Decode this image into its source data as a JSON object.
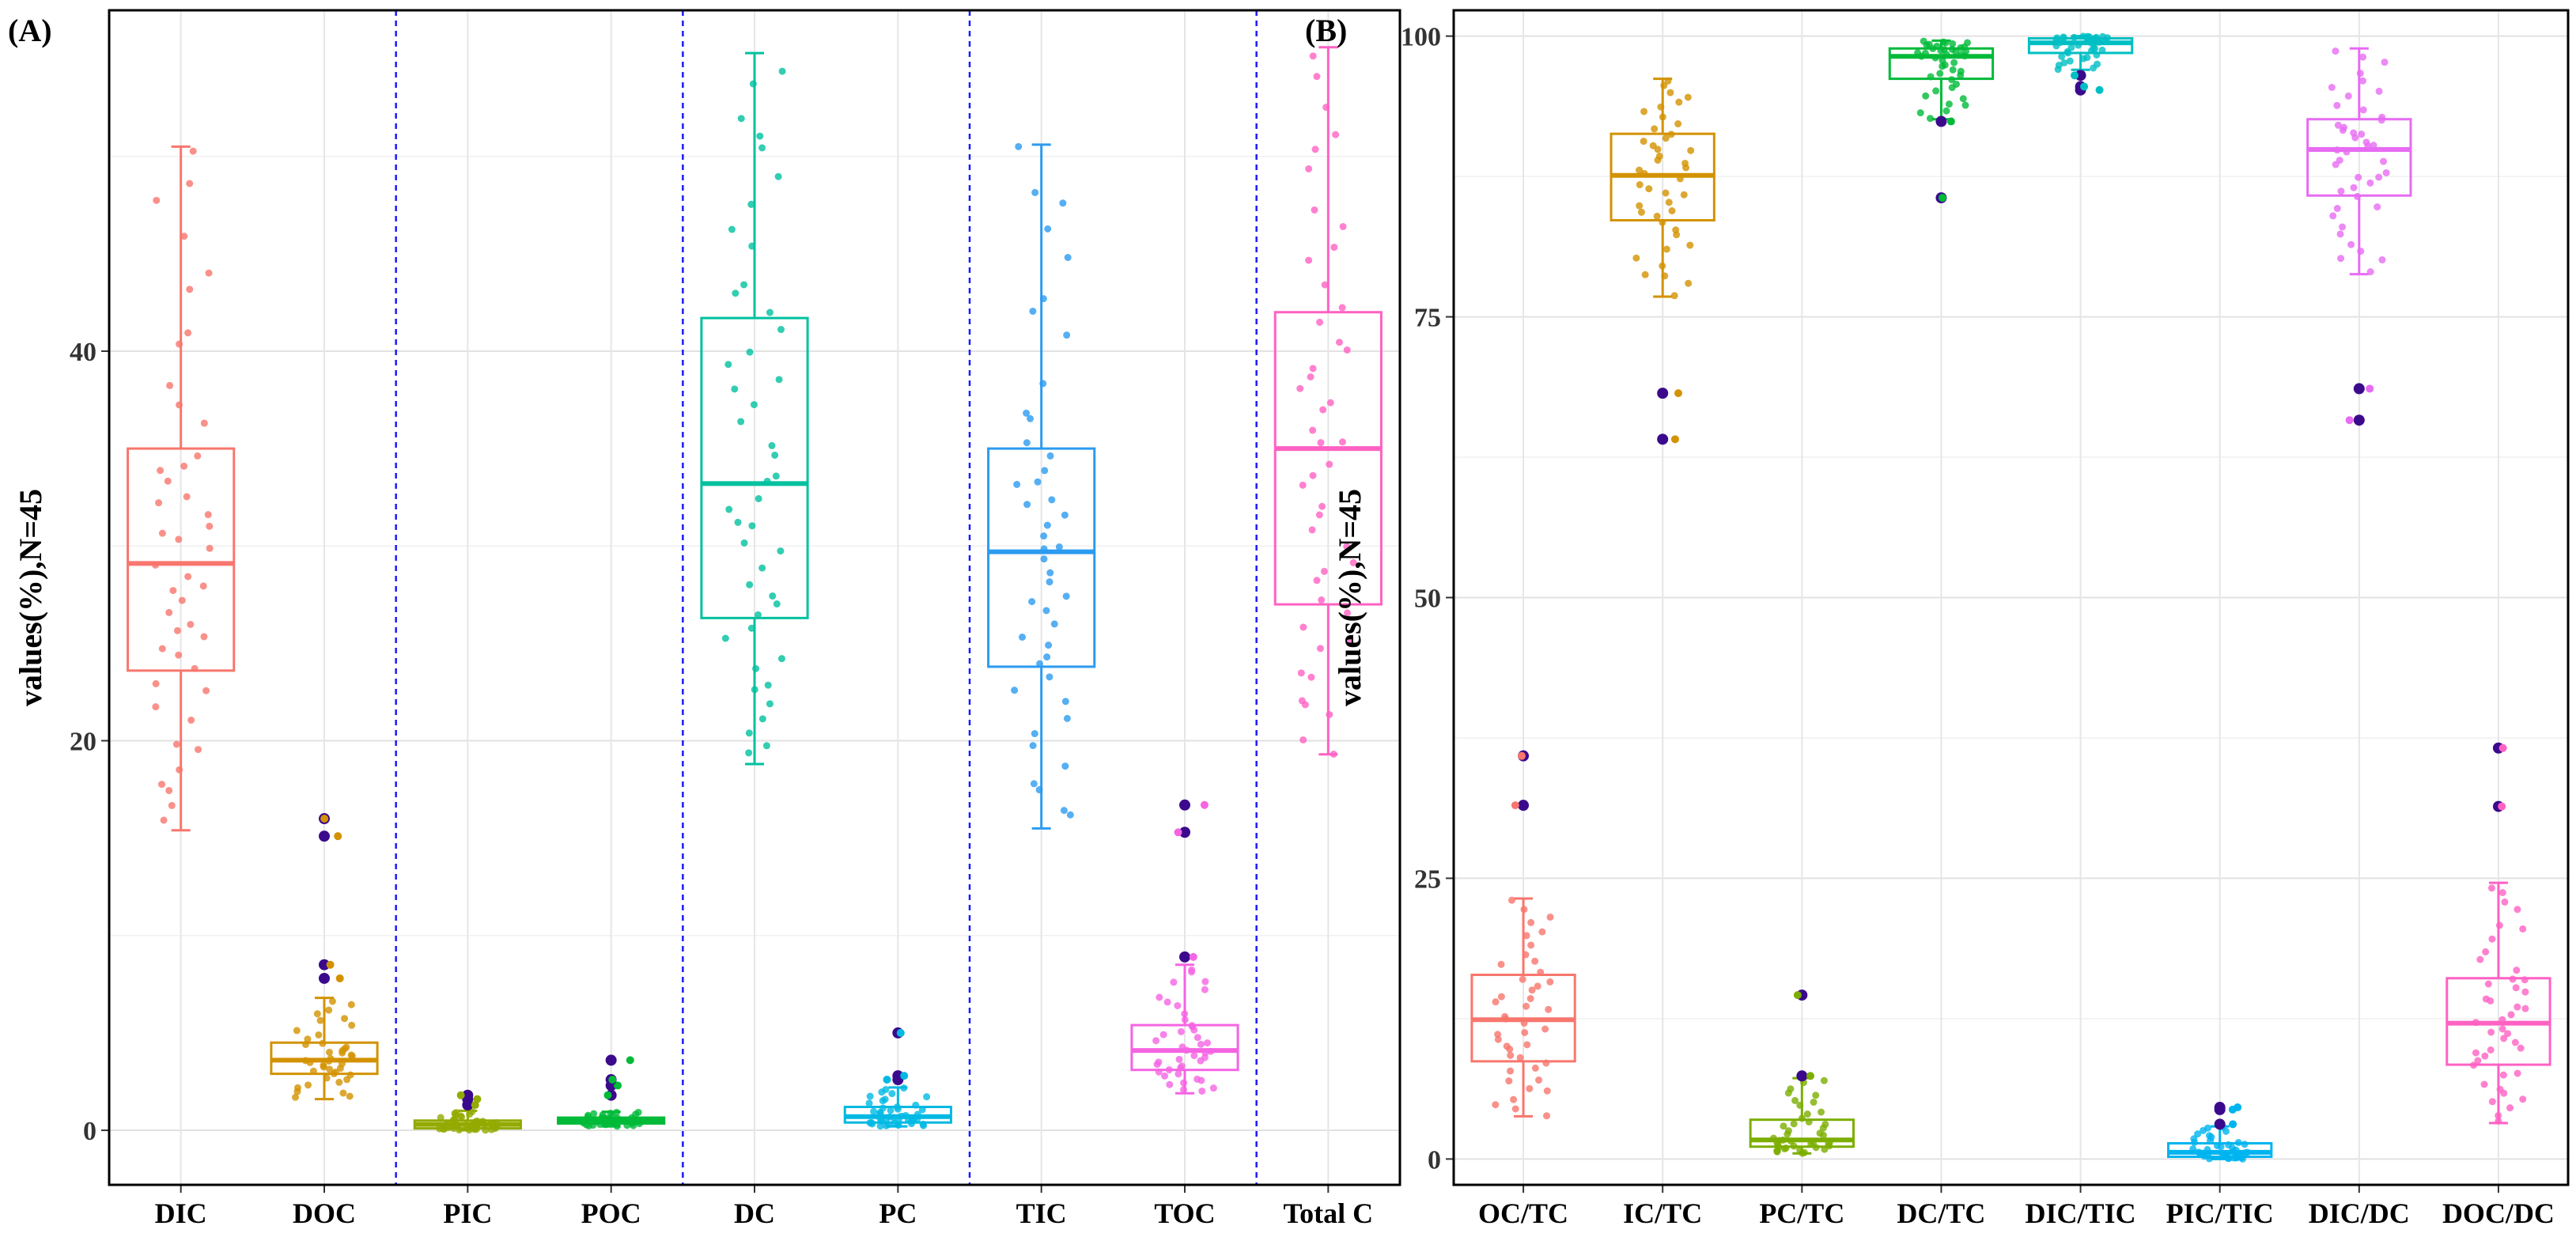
{
  "chart_data": [
    {
      "type": "box",
      "panel_label": "(A)",
      "ylabel": "values(%),N=45",
      "ylim": [
        -2.8,
        57.5
      ],
      "yticks": [
        0,
        20,
        40
      ],
      "grid": true,
      "group_separators_after": [
        "DOC",
        "POC",
        "PC",
        "TOC"
      ],
      "categories": [
        "DIC",
        "DOC",
        "PIC",
        "POC",
        "DC",
        "PC",
        "TIC",
        "TOC",
        "Total C"
      ],
      "colors": [
        "#F8766D",
        "#D39200",
        "#93AA00",
        "#00BA38",
        "#00C19F",
        "#00B9E3",
        "#2C9BF0",
        "#F564E3",
        "#FF61C3"
      ],
      "boxes": [
        {
          "name": "DIC",
          "min": 15.4,
          "q1": 23.6,
          "median": 29.1,
          "q3": 35.0,
          "max": 50.5,
          "outliers": []
        },
        {
          "name": "DOC",
          "min": 1.6,
          "q1": 2.9,
          "median": 3.6,
          "q3": 4.5,
          "max": 6.8,
          "outliers": [
            7.8,
            8.5,
            15.1,
            16.0
          ]
        },
        {
          "name": "PIC",
          "min": 0.0,
          "q1": 0.1,
          "median": 0.3,
          "q3": 0.5,
          "max": 1.0,
          "outliers": [
            1.3,
            1.6,
            1.8
          ]
        },
        {
          "name": "POC",
          "min": 0.2,
          "q1": 0.35,
          "median": 0.5,
          "q3": 0.65,
          "max": 0.95,
          "outliers": [
            1.8,
            2.3,
            2.6,
            3.6
          ]
        },
        {
          "name": "DC",
          "min": 18.8,
          "q1": 26.3,
          "median": 33.2,
          "q3": 41.7,
          "max": 55.3,
          "outliers": []
        },
        {
          "name": "PC",
          "min": 0.2,
          "q1": 0.4,
          "median": 0.7,
          "q3": 1.2,
          "max": 2.2,
          "outliers": [
            2.6,
            2.8,
            5.0
          ]
        },
        {
          "name": "TIC",
          "min": 15.5,
          "q1": 23.8,
          "median": 29.7,
          "q3": 35.0,
          "max": 50.6,
          "outliers": []
        },
        {
          "name": "TOC",
          "min": 1.9,
          "q1": 3.1,
          "median": 4.1,
          "q3": 5.4,
          "max": 8.5,
          "outliers": [
            8.9,
            15.3,
            16.7
          ]
        },
        {
          "name": "Total C",
          "min": 19.3,
          "q1": 27.0,
          "median": 35.0,
          "q3": 42.0,
          "max": 55.6,
          "outliers": []
        }
      ]
    },
    {
      "type": "box",
      "panel_label": "(B)",
      "ylabel": "values(%),N=45",
      "ylim": [
        -2.3,
        102.3
      ],
      "yticks": [
        0,
        25,
        50,
        75,
        100
      ],
      "grid": true,
      "categories": [
        "OC/TC",
        "IC/TC",
        "PC/TC",
        "DC/TC",
        "DIC/TIC",
        "PIC/TIC",
        "DIC/DC",
        "DOC/DC"
      ],
      "colors": [
        "#F8766D",
        "#D39200",
        "#7CAE00",
        "#00BA38",
        "#00BFC4",
        "#00B4EF",
        "#E76BF3",
        "#FF61C3"
      ],
      "boxes": [
        {
          "name": "OC/TC",
          "min": 3.8,
          "q1": 8.7,
          "median": 12.4,
          "q3": 16.4,
          "max": 23.2,
          "outliers": [
            31.5,
            35.9
          ]
        },
        {
          "name": "IC/TC",
          "min": 76.8,
          "q1": 83.6,
          "median": 87.6,
          "q3": 91.3,
          "max": 96.2,
          "outliers": [
            68.2,
            64.1
          ]
        },
        {
          "name": "PC/TC",
          "min": 0.5,
          "q1": 1.1,
          "median": 1.7,
          "q3": 3.5,
          "max": 7.2,
          "outliers": [
            7.4,
            14.6
          ]
        },
        {
          "name": "DC/TC",
          "min": 92.6,
          "q1": 96.2,
          "median": 98.2,
          "q3": 98.9,
          "max": 99.6,
          "outliers": [
            85.6,
            92.4
          ]
        },
        {
          "name": "DIC/TIC",
          "min": 97.0,
          "q1": 98.5,
          "median": 99.4,
          "q3": 99.8,
          "max": 100.0,
          "outliers": [
            95.2,
            95.5,
            96.5
          ]
        },
        {
          "name": "PIC/TIC",
          "min": 0.0,
          "q1": 0.2,
          "median": 0.6,
          "q3": 1.4,
          "max": 2.9,
          "outliers": [
            3.1,
            4.4,
            4.6
          ]
        },
        {
          "name": "DIC/DC",
          "min": 78.8,
          "q1": 85.8,
          "median": 89.9,
          "q3": 92.6,
          "max": 98.9,
          "outliers": [
            68.6,
            65.8
          ]
        },
        {
          "name": "DOC/DC",
          "min": 3.2,
          "q1": 8.4,
          "median": 12.1,
          "q3": 16.1,
          "max": 24.6,
          "outliers": [
            31.4,
            36.6
          ]
        }
      ]
    }
  ]
}
